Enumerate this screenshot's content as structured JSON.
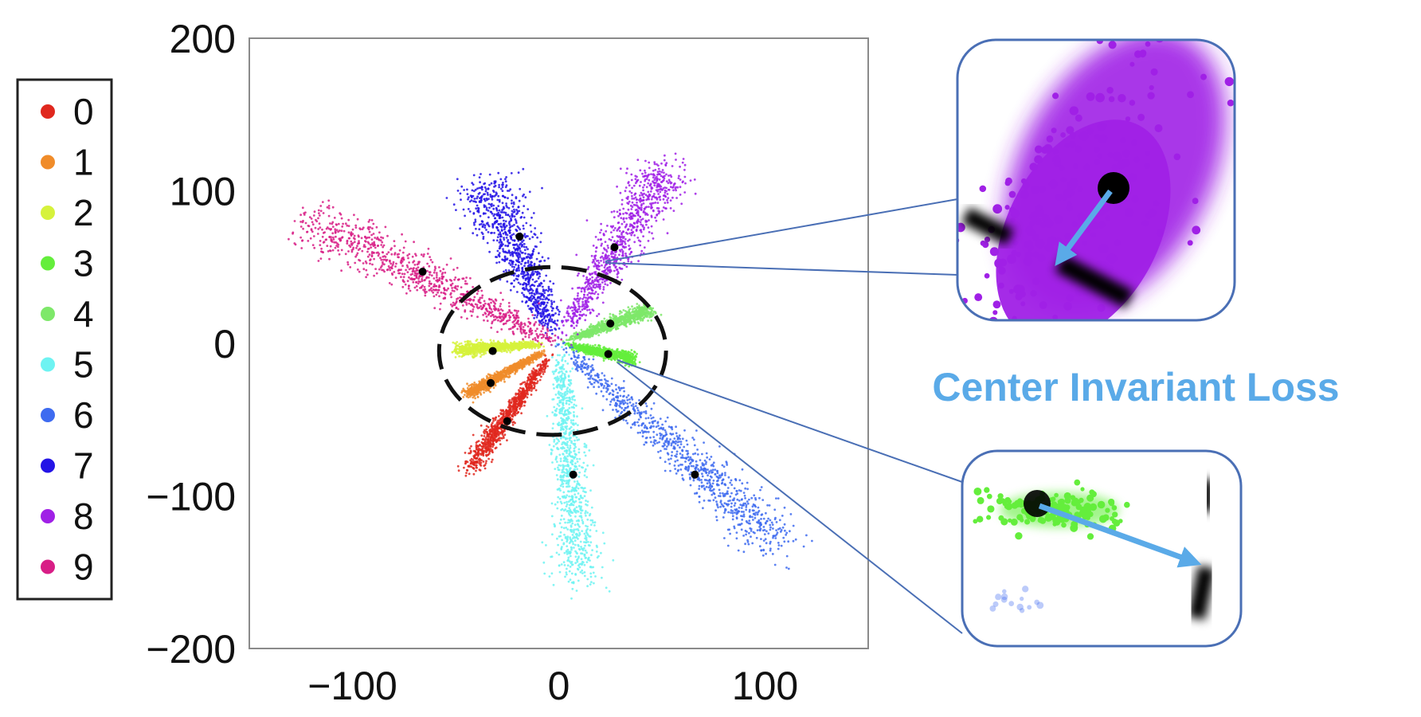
{
  "chart_data": {
    "type": "scatter",
    "title": "",
    "xlabel": "",
    "ylabel": "",
    "xlim": [
      -150,
      150
    ],
    "ylim": [
      -200,
      200
    ],
    "xticks": [
      -100,
      0,
      100
    ],
    "yticks": [
      200,
      100,
      0,
      -100,
      -200
    ],
    "xtick_labels": [
      "−100",
      "0",
      "100"
    ],
    "ytick_labels": [
      "200",
      "100",
      "0",
      "−100",
      "−200"
    ],
    "legend_position": "left",
    "grid": false,
    "series": [
      {
        "name": "0",
        "color": "#e0281e",
        "center": [
          -25,
          -51
        ],
        "spread": {
          "dir": [
            -42,
            -80
          ],
          "from": 0.15,
          "to": 1.0,
          "sigma_along": 0.5,
          "sigma_perp": 2.4
        }
      },
      {
        "name": "1",
        "color": "#f08c2a",
        "center": [
          -33,
          -26
        ],
        "spread": {
          "dir": [
            -44,
            -33
          ],
          "from": 0.2,
          "to": 1.0,
          "sigma_along": 0.3,
          "sigma_perp": 1.6
        }
      },
      {
        "name": "2",
        "color": "#d6f23c",
        "center": [
          -32,
          -5
        ],
        "spread": {
          "dir": [
            -48,
            -4
          ],
          "from": 0.2,
          "to": 1.0,
          "sigma_along": 0.3,
          "sigma_perp": 1.8
        }
      },
      {
        "name": "3",
        "color": "#64ee3c",
        "center": [
          24,
          -7
        ],
        "spread": {
          "dir": [
            36,
            -10
          ],
          "from": 0.15,
          "to": 1.0,
          "sigma_along": 0.3,
          "sigma_perp": 1.8
        }
      },
      {
        "name": "4",
        "color": "#7ee86a",
        "center": [
          25,
          13
        ],
        "spread": {
          "dir": [
            44,
            22
          ],
          "from": 0.15,
          "to": 1.0,
          "sigma_along": 0.3,
          "sigma_perp": 2.0
        }
      },
      {
        "name": "5",
        "color": "#6ef3f2",
        "center": [
          7,
          -86
        ],
        "spread": {
          "dir": [
            10,
            -155
          ],
          "from": 0.05,
          "to": 1.0,
          "sigma_along": 0.4,
          "sigma_perp": 5.0
        }
      },
      {
        "name": "6",
        "color": "#3e6bf0",
        "center": [
          66,
          -86
        ],
        "spread": {
          "dir": [
            108,
            -132
          ],
          "from": 0.05,
          "to": 1.0,
          "sigma_along": 0.4,
          "sigma_perp": 6.0
        }
      },
      {
        "name": "7",
        "color": "#2414e6",
        "center": [
          -19,
          70
        ],
        "spread": {
          "dir": [
            -36,
            105
          ],
          "from": 0.1,
          "to": 1.0,
          "sigma_along": 0.4,
          "sigma_perp": 6.5
        }
      },
      {
        "name": "8",
        "color": "#a020e6",
        "center": [
          27,
          63
        ],
        "spread": {
          "dir": [
            52,
            115
          ],
          "from": 0.1,
          "to": 1.0,
          "sigma_along": 0.4,
          "sigma_perp": 6.0
        }
      },
      {
        "name": "9",
        "color": "#d81e86",
        "center": [
          -66,
          47
        ],
        "spread": {
          "dir": [
            -120,
            80
          ],
          "from": 0.05,
          "to": 1.0,
          "sigma_along": 0.4,
          "sigma_perp": 7.0
        }
      }
    ],
    "radius_circle": {
      "center": [
        -3,
        -5
      ],
      "radius": 55,
      "style": "dashed"
    },
    "annotation": "Center Invariant Loss"
  },
  "colors": {
    "annotation_text": "#5aaae8",
    "callout_border": "#4a6fb5",
    "arrow": "#5aaae8",
    "axis": "#8a8a8a"
  }
}
